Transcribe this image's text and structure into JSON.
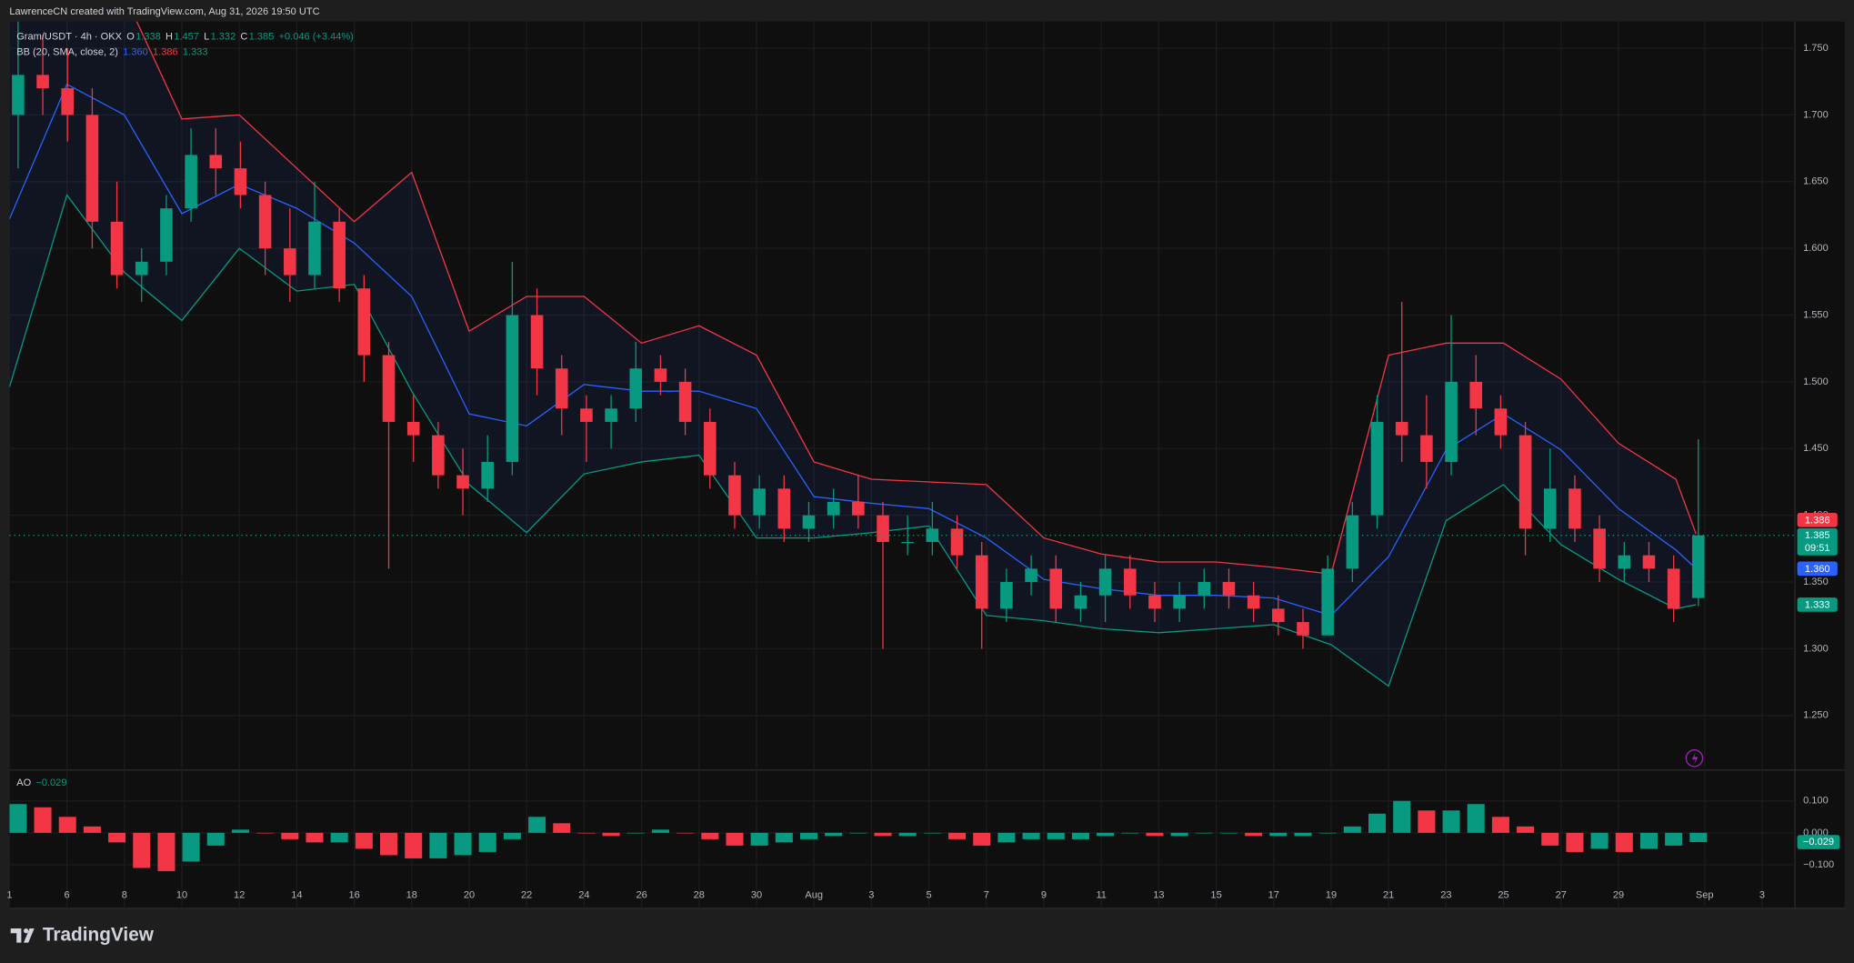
{
  "header": {
    "credit": "LawrenceCN created with TradingView.com, Aug 31, 2026 19:50 UTC",
    "brand": "TradingView"
  },
  "chart_data": [
    {
      "type": "candlestick",
      "legend": {
        "symbol": "Gram/USDT · 4h · OKX",
        "fields": [
          {
            "key": "O",
            "value": "1.338"
          },
          {
            "key": "H",
            "value": "1.457"
          },
          {
            "key": "L",
            "value": "1.332"
          },
          {
            "key": "C",
            "value": "1.385"
          }
        ],
        "change": "+0.046 (+3.44%)",
        "color": "#089981"
      },
      "indicator": {
        "name": "BB (20, SMA, close, 2)",
        "values": [
          "1.360",
          "1.386",
          "1.333"
        ],
        "colors": [
          "#2962ff",
          "#f23645",
          "#089981"
        ]
      },
      "up_color": "#089981",
      "down_color": "#f23645",
      "x": [
        0.3,
        1.16,
        2.02,
        2.88,
        3.74,
        4.6,
        5.46,
        6.32,
        7.18,
        8.04,
        8.9,
        9.76,
        10.62,
        11.48,
        12.34,
        13.2,
        14.06,
        14.92,
        15.78,
        16.64,
        17.5,
        18.36,
        19.22,
        20.08,
        20.94,
        21.8,
        22.66,
        23.52,
        24.38,
        25.24,
        26.1,
        26.96,
        27.82,
        28.68,
        29.54,
        30.4,
        31.26,
        32.12,
        32.98,
        33.84,
        34.7,
        35.56,
        36.42,
        37.28,
        38.14,
        39.0,
        39.86,
        40.72,
        41.58,
        42.44,
        43.3,
        44.16,
        45.02,
        45.88,
        46.74,
        47.6,
        48.46,
        49.32,
        50.18,
        51.04,
        51.9,
        52.76,
        53.62,
        54.48,
        55.34,
        56.2,
        57.06,
        57.92,
        58.78
      ],
      "ohlc": [
        [
          1.7,
          1.77,
          1.66,
          1.73
        ],
        [
          1.73,
          1.76,
          1.7,
          1.72
        ],
        [
          1.72,
          1.75,
          1.68,
          1.7
        ],
        [
          1.7,
          1.72,
          1.6,
          1.62
        ],
        [
          1.62,
          1.65,
          1.57,
          1.58
        ],
        [
          1.58,
          1.6,
          1.56,
          1.59
        ],
        [
          1.59,
          1.64,
          1.58,
          1.63
        ],
        [
          1.63,
          1.69,
          1.62,
          1.67
        ],
        [
          1.67,
          1.69,
          1.64,
          1.66
        ],
        [
          1.66,
          1.68,
          1.63,
          1.64
        ],
        [
          1.64,
          1.65,
          1.58,
          1.6
        ],
        [
          1.6,
          1.63,
          1.56,
          1.58
        ],
        [
          1.58,
          1.65,
          1.57,
          1.62
        ],
        [
          1.62,
          1.63,
          1.56,
          1.57
        ],
        [
          1.57,
          1.58,
          1.5,
          1.52
        ],
        [
          1.52,
          1.53,
          1.36,
          1.47
        ],
        [
          1.47,
          1.49,
          1.44,
          1.46
        ],
        [
          1.46,
          1.47,
          1.42,
          1.43
        ],
        [
          1.43,
          1.45,
          1.4,
          1.42
        ],
        [
          1.42,
          1.46,
          1.41,
          1.44
        ],
        [
          1.44,
          1.59,
          1.43,
          1.55
        ],
        [
          1.55,
          1.57,
          1.49,
          1.51
        ],
        [
          1.51,
          1.52,
          1.46,
          1.48
        ],
        [
          1.48,
          1.49,
          1.44,
          1.47
        ],
        [
          1.47,
          1.49,
          1.45,
          1.48
        ],
        [
          1.48,
          1.53,
          1.47,
          1.51
        ],
        [
          1.51,
          1.52,
          1.49,
          1.5
        ],
        [
          1.5,
          1.51,
          1.46,
          1.47
        ],
        [
          1.47,
          1.48,
          1.42,
          1.43
        ],
        [
          1.43,
          1.44,
          1.39,
          1.4
        ],
        [
          1.4,
          1.43,
          1.39,
          1.42
        ],
        [
          1.42,
          1.43,
          1.38,
          1.39
        ],
        [
          1.39,
          1.41,
          1.38,
          1.4
        ],
        [
          1.4,
          1.42,
          1.39,
          1.41
        ],
        [
          1.41,
          1.43,
          1.39,
          1.4
        ],
        [
          1.4,
          1.41,
          1.3,
          1.38
        ],
        [
          1.38,
          1.4,
          1.37,
          1.38
        ],
        [
          1.38,
          1.41,
          1.37,
          1.39
        ],
        [
          1.39,
          1.4,
          1.36,
          1.37
        ],
        [
          1.37,
          1.38,
          1.3,
          1.33
        ],
        [
          1.33,
          1.36,
          1.32,
          1.35
        ],
        [
          1.35,
          1.37,
          1.34,
          1.36
        ],
        [
          1.36,
          1.37,
          1.32,
          1.33
        ],
        [
          1.33,
          1.35,
          1.32,
          1.34
        ],
        [
          1.34,
          1.37,
          1.32,
          1.36
        ],
        [
          1.36,
          1.37,
          1.33,
          1.34
        ],
        [
          1.34,
          1.35,
          1.32,
          1.33
        ],
        [
          1.33,
          1.35,
          1.32,
          1.34
        ],
        [
          1.34,
          1.36,
          1.33,
          1.35
        ],
        [
          1.35,
          1.36,
          1.33,
          1.34
        ],
        [
          1.34,
          1.35,
          1.32,
          1.33
        ],
        [
          1.33,
          1.34,
          1.31,
          1.32
        ],
        [
          1.32,
          1.33,
          1.3,
          1.31
        ],
        [
          1.31,
          1.37,
          1.31,
          1.36
        ],
        [
          1.36,
          1.41,
          1.35,
          1.4
        ],
        [
          1.4,
          1.49,
          1.39,
          1.47
        ],
        [
          1.47,
          1.56,
          1.44,
          1.46
        ],
        [
          1.46,
          1.49,
          1.42,
          1.44
        ],
        [
          1.44,
          1.55,
          1.43,
          1.5
        ],
        [
          1.5,
          1.52,
          1.46,
          1.48
        ],
        [
          1.48,
          1.49,
          1.45,
          1.46
        ],
        [
          1.46,
          1.47,
          1.37,
          1.39
        ],
        [
          1.39,
          1.45,
          1.38,
          1.42
        ],
        [
          1.42,
          1.43,
          1.38,
          1.39
        ],
        [
          1.39,
          1.4,
          1.35,
          1.36
        ],
        [
          1.36,
          1.38,
          1.35,
          1.37
        ],
        [
          1.37,
          1.38,
          1.35,
          1.36
        ],
        [
          1.36,
          1.37,
          1.32,
          1.33
        ],
        [
          1.338,
          1.457,
          1.332,
          1.385
        ]
      ],
      "bands": {
        "x": [
          0,
          2,
          4,
          6,
          8,
          10,
          12,
          14,
          16,
          18,
          20,
          22,
          24,
          26,
          28,
          30,
          32,
          34,
          36,
          38,
          40,
          42,
          44,
          46,
          48,
          50,
          52,
          54,
          56,
          58,
          58.7
        ],
        "upper": [
          1.8,
          1.8,
          1.79,
          1.697,
          1.7,
          1.66,
          1.62,
          1.657,
          1.538,
          1.564,
          1.564,
          1.529,
          1.542,
          1.52,
          1.44,
          1.427,
          1.425,
          1.423,
          1.383,
          1.371,
          1.365,
          1.365,
          1.361,
          1.356,
          1.52,
          1.529,
          1.529,
          1.502,
          1.454,
          1.427,
          1.386
        ],
        "middle": [
          1.622,
          1.723,
          1.7,
          1.626,
          1.648,
          1.63,
          1.604,
          1.564,
          1.476,
          1.467,
          1.498,
          1.493,
          1.493,
          1.48,
          1.414,
          1.409,
          1.405,
          1.383,
          1.352,
          1.345,
          1.34,
          1.34,
          1.338,
          1.325,
          1.369,
          1.449,
          1.476,
          1.449,
          1.405,
          1.374,
          1.36
        ],
        "lower": [
          1.496,
          1.64,
          1.582,
          1.546,
          1.6,
          1.568,
          1.573,
          1.493,
          1.423,
          1.387,
          1.431,
          1.44,
          1.445,
          1.383,
          1.383,
          1.387,
          1.392,
          1.325,
          1.321,
          1.315,
          1.312,
          1.315,
          1.318,
          1.303,
          1.272,
          1.396,
          1.423,
          1.378,
          1.352,
          1.33,
          1.333
        ],
        "colors": {
          "upper": "#f23645",
          "middle": "#2962ff",
          "lower": "#089981"
        }
      },
      "xlim": [
        0,
        62.14
      ],
      "ylim": [
        1.21,
        1.77
      ],
      "xticks": [
        {
          "value": 0,
          "label": "1"
        },
        {
          "value": 2,
          "label": "6"
        },
        {
          "value": 4,
          "label": "8"
        },
        {
          "value": 6,
          "label": "10"
        },
        {
          "value": 8,
          "label": "12"
        },
        {
          "value": 10,
          "label": "14"
        },
        {
          "value": 12,
          "label": "16"
        },
        {
          "value": 14,
          "label": "18"
        },
        {
          "value": 16,
          "label": "20"
        },
        {
          "value": 18,
          "label": "22"
        },
        {
          "value": 20,
          "label": "24"
        },
        {
          "value": 22,
          "label": "26"
        },
        {
          "value": 24,
          "label": "28"
        },
        {
          "value": 26,
          "label": "30"
        },
        {
          "value": 28,
          "label": "Aug"
        },
        {
          "value": 30,
          "label": "3"
        },
        {
          "value": 32,
          "label": "5"
        },
        {
          "value": 34,
          "label": "7"
        },
        {
          "value": 36,
          "label": "9"
        },
        {
          "value": 38,
          "label": "11"
        },
        {
          "value": 40,
          "label": "13"
        },
        {
          "value": 42,
          "label": "15"
        },
        {
          "value": 44,
          "label": "17"
        },
        {
          "value": 46,
          "label": "19"
        },
        {
          "value": 48,
          "label": "21"
        },
        {
          "value": 50,
          "label": "23"
        },
        {
          "value": 52,
          "label": "25"
        },
        {
          "value": 54,
          "label": "27"
        },
        {
          "value": 56,
          "label": "29"
        },
        {
          "value": 59,
          "label": "Sep"
        },
        {
          "value": 61,
          "label": "3"
        }
      ],
      "yticks": [
        {
          "value": 1.25,
          "label": "1.250"
        },
        {
          "value": 1.3,
          "label": "1.300"
        },
        {
          "value": 1.35,
          "label": "1.350"
        },
        {
          "value": 1.4,
          "label": "1.400"
        },
        {
          "value": 1.45,
          "label": "1.450"
        },
        {
          "value": 1.5,
          "label": "1.500"
        },
        {
          "value": 1.55,
          "label": "1.550"
        },
        {
          "value": 1.6,
          "label": "1.600"
        },
        {
          "value": 1.65,
          "label": "1.650"
        },
        {
          "value": 1.7,
          "label": "1.700"
        },
        {
          "value": 1.75,
          "label": "1.750"
        }
      ],
      "price_tags": [
        {
          "value": 1.386,
          "label": "1.386",
          "color": "#f23645"
        },
        {
          "value": 1.385,
          "label": "1.385",
          "sub": "09:51",
          "color": "#089981"
        },
        {
          "value": 1.36,
          "label": "1.360",
          "color": "#2962ff"
        },
        {
          "value": 1.333,
          "label": "1.333",
          "color": "#089981"
        }
      ],
      "grid": true
    },
    {
      "type": "bar",
      "title": "AO",
      "legend_value": "−0.029",
      "legend_color": "#089981",
      "up_color": "#089981",
      "down_color": "#f23645",
      "values": [
        0.09,
        0.08,
        0.05,
        0.02,
        -0.03,
        -0.11,
        -0.12,
        -0.09,
        -0.04,
        0.01,
        0.0,
        -0.02,
        -0.03,
        -0.03,
        -0.05,
        -0.07,
        -0.08,
        -0.08,
        -0.07,
        -0.06,
        -0.02,
        0.05,
        0.03,
        0.0,
        -0.01,
        0.0,
        0.01,
        0.0,
        -0.02,
        -0.04,
        -0.04,
        -0.03,
        -0.02,
        -0.01,
        0.0,
        -0.01,
        -0.01,
        0.0,
        -0.02,
        -0.04,
        -0.03,
        -0.02,
        -0.02,
        -0.02,
        -0.01,
        0.0,
        -0.01,
        -0.01,
        0.0,
        0.0,
        -0.01,
        -0.01,
        -0.01,
        0.0,
        0.02,
        0.06,
        0.1,
        0.07,
        0.07,
        0.09,
        0.05,
        0.02,
        -0.04,
        -0.06,
        -0.05,
        -0.06,
        -0.05,
        -0.04,
        -0.029
      ],
      "ylim": [
        -0.233,
        0.193
      ],
      "yticks": [
        {
          "value": 0.1,
          "label": "0.100"
        },
        {
          "value": 0,
          "label": "0.000"
        },
        {
          "value": -0.1,
          "label": "−0.100"
        }
      ],
      "tag": {
        "value": -0.029,
        "label": "−0.029",
        "color": "#089981"
      },
      "grid": true
    }
  ]
}
